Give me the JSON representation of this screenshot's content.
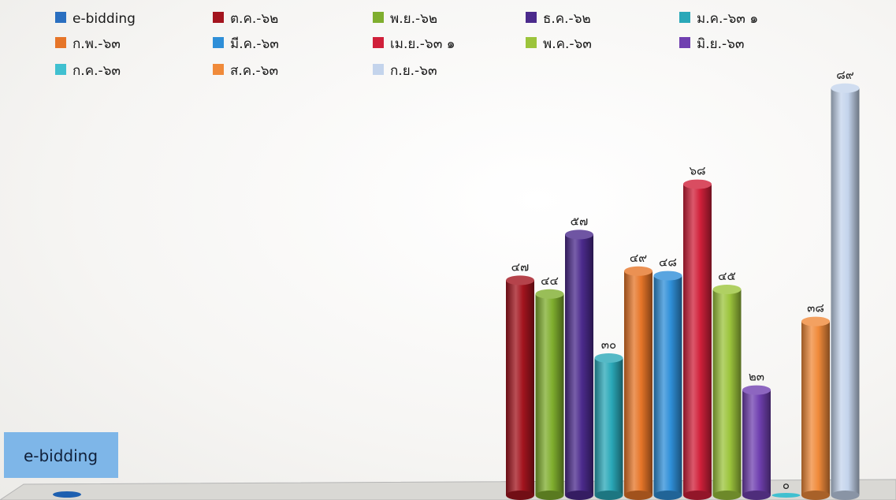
{
  "chart_data": {
    "type": "bar",
    "categories": [
      "e-bidding"
    ],
    "series": [
      {
        "name": "e-bidding",
        "value": null,
        "value_label": "",
        "color": "#2a6fc0"
      },
      {
        "name": "ต.ค.-๖๒",
        "value": 47,
        "value_label": "๔๗",
        "color": "#a3141e"
      },
      {
        "name": "พ.ย.-๖๒",
        "value": 44,
        "value_label": "๔๔",
        "color": "#7fae2e"
      },
      {
        "name": "ธ.ค.-๖๒",
        "value": 57,
        "value_label": "๕๗",
        "color": "#4b2a8c"
      },
      {
        "name": "ม.ค.-๖๓ ๑",
        "value": 30,
        "value_label": "๓๐",
        "color": "#2aa8b8"
      },
      {
        "name": "ก.พ.-๖๓",
        "value": 49,
        "value_label": "๔๙",
        "color": "#e67528"
      },
      {
        "name": "มี.ค.-๖๓",
        "value": 48,
        "value_label": "๔๘",
        "color": "#2f8fd8"
      },
      {
        "name": "เม.ย.-๖๓ ๑",
        "value": 68,
        "value_label": "๖๘",
        "color": "#d0203a"
      },
      {
        "name": "พ.ค.-๖๓",
        "value": 45,
        "value_label": "๔๕",
        "color": "#9cc43c"
      },
      {
        "name": "มิ.ย.-๖๓",
        "value": 23,
        "value_label": "๒๓",
        "color": "#7040b0"
      },
      {
        "name": "ก.ค.-๖๓",
        "value": 0,
        "value_label": "๐",
        "color": "#40c0d0"
      },
      {
        "name": "ส.ค.-๖๓",
        "value": 38,
        "value_label": "๓๘",
        "color": "#f08a3a"
      },
      {
        "name": "ก.ย.-๖๓",
        "value": 89,
        "value_label": "๘๙",
        "color": "#c4d4ec"
      }
    ],
    "legend_position": "top",
    "grid": false,
    "style": "3d-cylinder"
  }
}
